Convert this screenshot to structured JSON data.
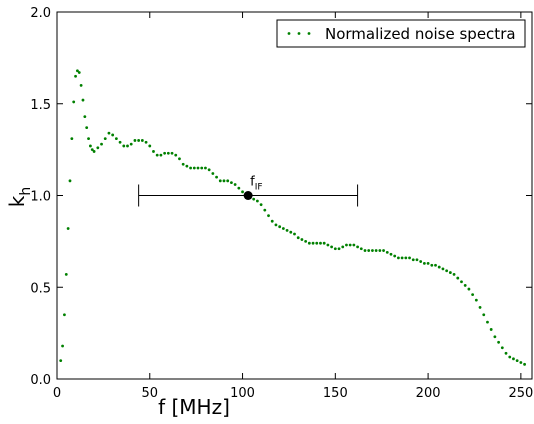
{
  "chart_data": {
    "type": "scatter",
    "xlabel": "f [MHz]",
    "ylabel": {
      "text": "k",
      "subscript": "h"
    },
    "xlim": [
      0,
      256
    ],
    "ylim": [
      0,
      2
    ],
    "xticks": [
      0,
      50,
      100,
      150,
      200,
      250
    ],
    "yticks": [
      {
        "value": 0,
        "label": "0.0"
      },
      0.5,
      {
        "value": 1,
        "label": "1.0"
      },
      1.5,
      {
        "value": 2,
        "label": "2.0"
      }
    ],
    "legend": "upper right",
    "x": [
      2,
      3,
      4,
      5,
      6,
      7,
      8,
      9,
      10,
      11,
      12,
      13,
      14,
      15,
      16,
      17,
      18,
      19,
      20,
      22,
      24,
      26,
      28,
      30,
      32,
      34,
      36,
      38,
      40,
      42,
      44,
      46,
      48,
      50,
      52,
      54,
      56,
      58,
      60,
      62,
      64,
      66,
      68,
      70,
      72,
      74,
      76,
      78,
      80,
      82,
      84,
      86,
      88,
      90,
      92,
      94,
      96,
      98,
      100,
      102,
      104,
      106,
      108,
      110,
      112,
      114,
      116,
      118,
      120,
      122,
      124,
      126,
      128,
      130,
      132,
      134,
      136,
      138,
      140,
      142,
      144,
      146,
      148,
      150,
      152,
      154,
      156,
      158,
      160,
      162,
      164,
      166,
      168,
      170,
      172,
      174,
      176,
      178,
      180,
      182,
      184,
      186,
      188,
      190,
      192,
      194,
      196,
      198,
      200,
      202,
      204,
      206,
      208,
      210,
      212,
      214,
      216,
      218,
      220,
      222,
      224,
      226,
      228,
      230,
      232,
      234,
      236,
      238,
      240,
      242,
      244,
      246,
      248,
      250,
      252
    ],
    "series": [
      {
        "name": "Normalized noise spectra",
        "color": "#008000",
        "values": [
          0.1,
          0.18,
          0.35,
          0.57,
          0.82,
          1.08,
          1.31,
          1.51,
          1.65,
          1.68,
          1.67,
          1.6,
          1.52,
          1.43,
          1.37,
          1.31,
          1.27,
          1.25,
          1.24,
          1.26,
          1.28,
          1.31,
          1.34,
          1.33,
          1.31,
          1.29,
          1.27,
          1.27,
          1.28,
          1.3,
          1.3,
          1.3,
          1.29,
          1.27,
          1.24,
          1.22,
          1.22,
          1.23,
          1.23,
          1.23,
          1.22,
          1.2,
          1.17,
          1.16,
          1.15,
          1.15,
          1.15,
          1.15,
          1.15,
          1.14,
          1.12,
          1.1,
          1.08,
          1.08,
          1.08,
          1.07,
          1.06,
          1.04,
          1.02,
          1.0,
          0.99,
          0.98,
          0.97,
          0.95,
          0.92,
          0.89,
          0.86,
          0.84,
          0.83,
          0.82,
          0.81,
          0.8,
          0.79,
          0.77,
          0.76,
          0.75,
          0.74,
          0.74,
          0.74,
          0.74,
          0.74,
          0.73,
          0.72,
          0.71,
          0.71,
          0.72,
          0.73,
          0.73,
          0.73,
          0.72,
          0.71,
          0.7,
          0.7,
          0.7,
          0.7,
          0.7,
          0.7,
          0.69,
          0.68,
          0.67,
          0.66,
          0.66,
          0.66,
          0.66,
          0.65,
          0.65,
          0.64,
          0.63,
          0.63,
          0.62,
          0.62,
          0.61,
          0.6,
          0.59,
          0.58,
          0.57,
          0.55,
          0.53,
          0.51,
          0.49,
          0.46,
          0.43,
          0.39,
          0.35,
          0.31,
          0.27,
          0.23,
          0.2,
          0.17,
          0.14,
          0.12,
          0.11,
          0.1,
          0.09,
          0.08
        ]
      }
    ],
    "errorbar": {
      "x": 103,
      "y": 1.0,
      "xerr": 59,
      "color": "#000000",
      "label": {
        "text": "f",
        "subscript": "IF"
      }
    }
  }
}
